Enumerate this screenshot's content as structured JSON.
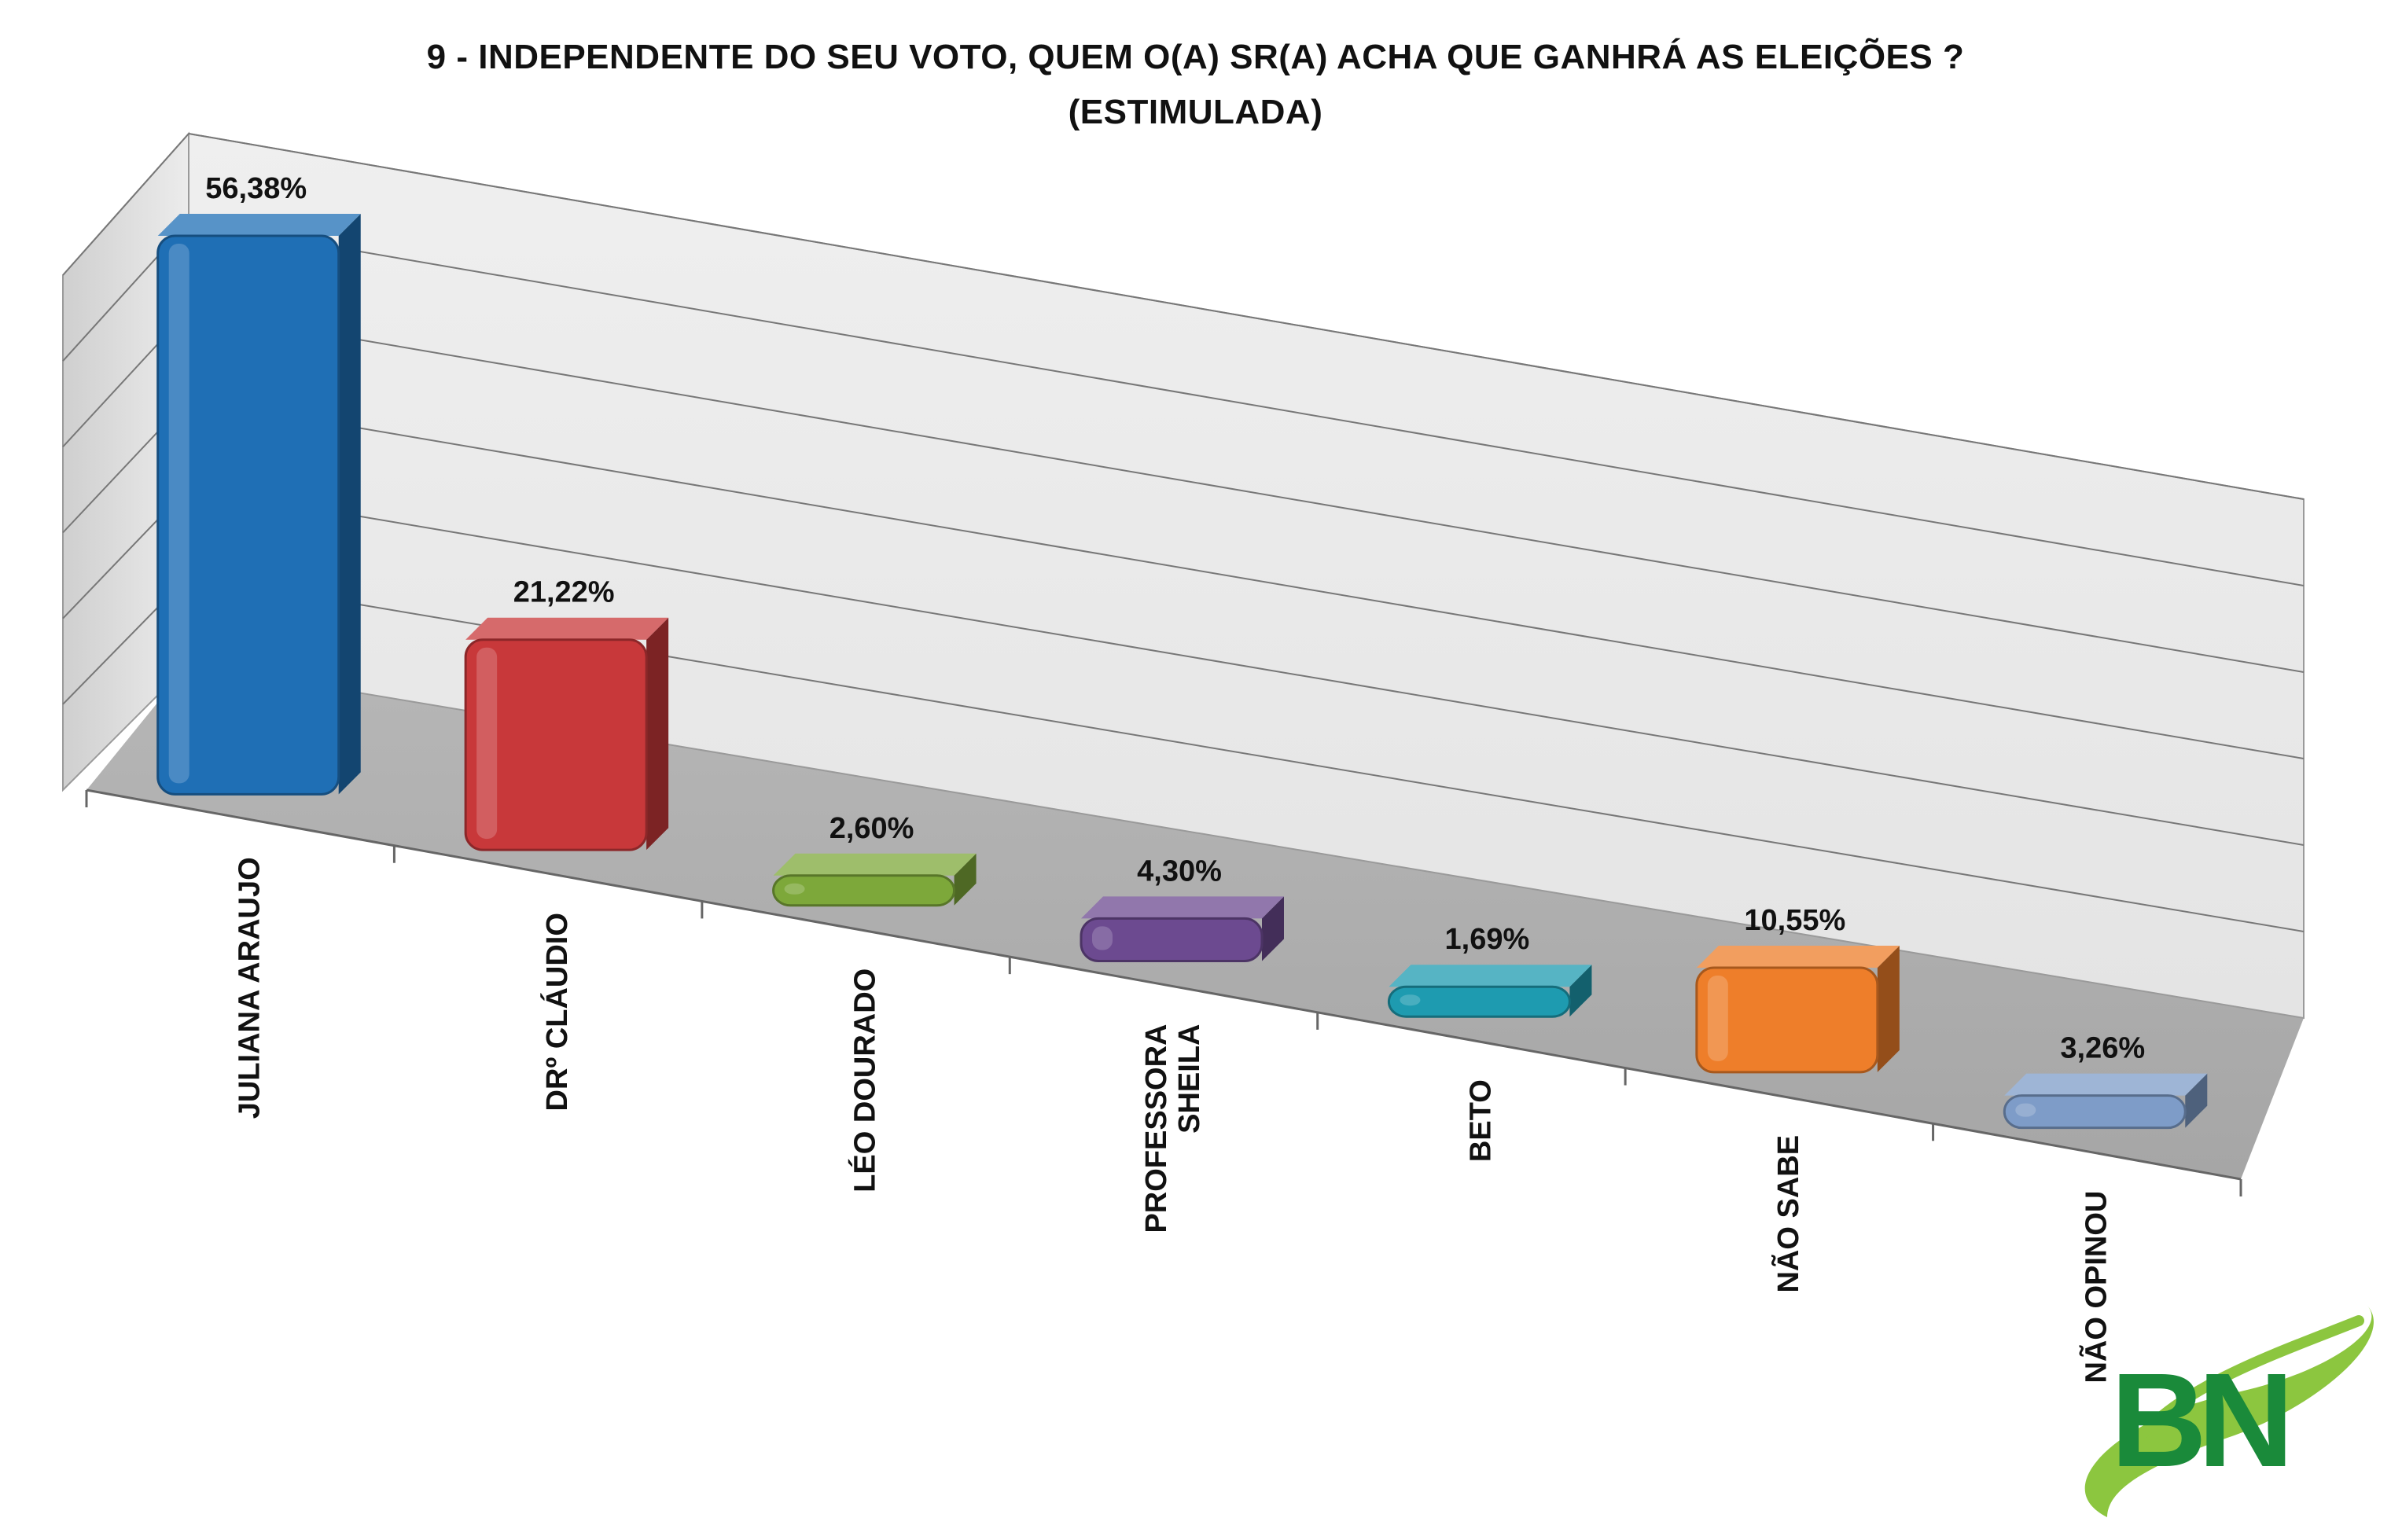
{
  "chart_data": {
    "type": "bar",
    "title": "9 - INDEPENDENTE DO SEU VOTO, QUEM O(A) SR(A) ACHA QUE GANHRÁ AS ELEIÇÕES ?",
    "subtitle": "(ESTIMULADA)",
    "categories": [
      "JULIANA ARAUJO",
      "DRº CLÁUDIO",
      "LÉO DOURADO",
      "PROFESSORA SHEILA",
      "BETO",
      "NÃO SABE",
      "NÃO OPINOU"
    ],
    "category_lines": [
      [
        "JULIANA ARAUJO"
      ],
      [
        "DRº CLÁUDIO"
      ],
      [
        "LÉO DOURADO"
      ],
      [
        "PROFESSORA",
        "SHEILA"
      ],
      [
        "BETO"
      ],
      [
        "NÃO SABE"
      ],
      [
        "NÃO OPINOU"
      ]
    ],
    "values": [
      56.38,
      21.22,
      2.6,
      4.3,
      1.69,
      10.55,
      3.26
    ],
    "value_labels": [
      "56,38%",
      "21,22%",
      "2,60%",
      "4,30%",
      "1,69%",
      "10,55%",
      "3,26%"
    ],
    "colors": [
      "#1F6FB5",
      "#C8383A",
      "#7DA83A",
      "#6C4A90",
      "#1E9BB0",
      "#EE7E2A",
      "#7E9CC8"
    ],
    "ylim": [
      0,
      60
    ],
    "grid": true,
    "legend": "none",
    "style": "3d-perspective"
  },
  "logo": {
    "text": "BN",
    "colors": [
      "#1A8A3A",
      "#8CC63F"
    ]
  }
}
